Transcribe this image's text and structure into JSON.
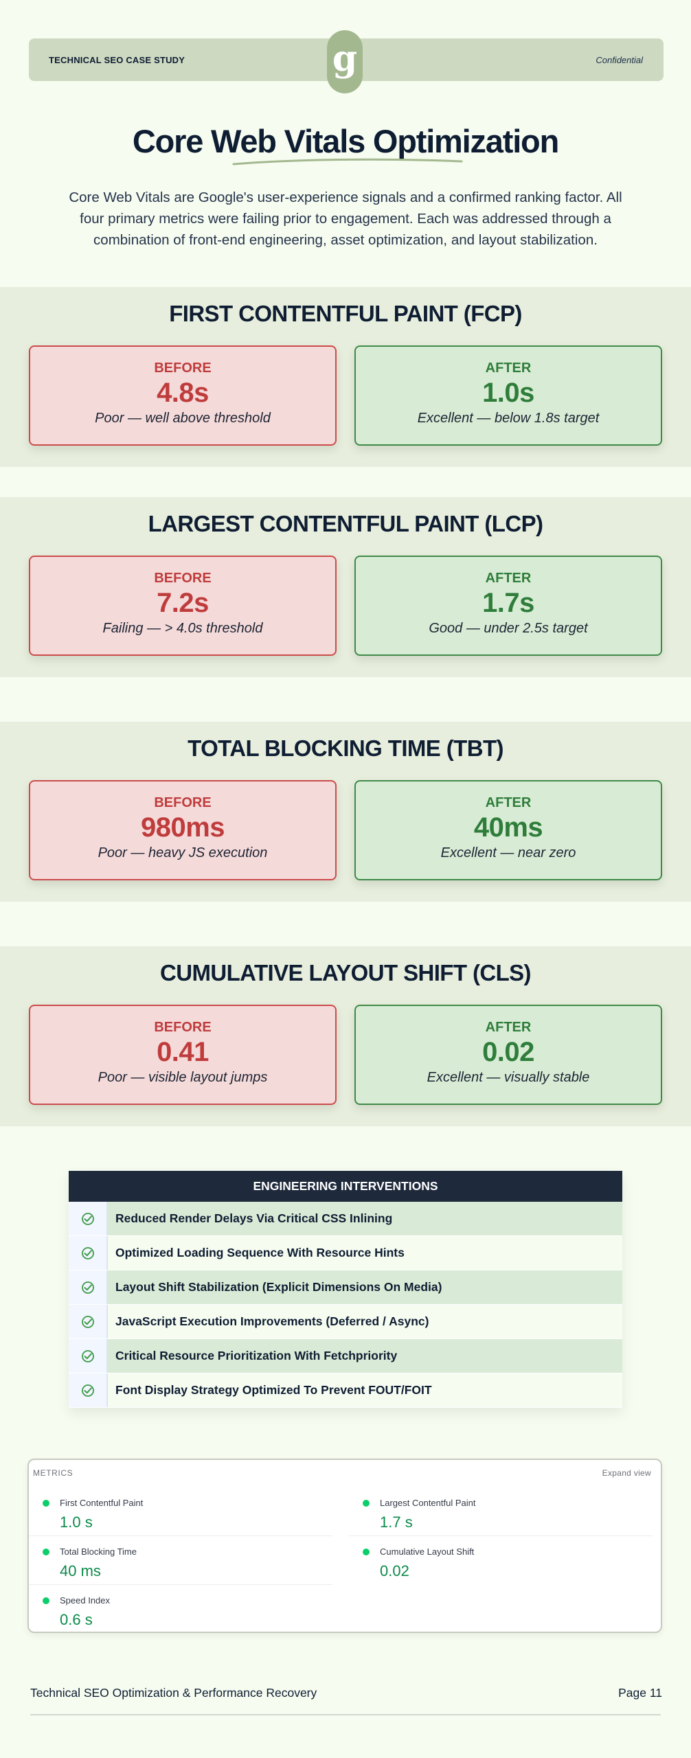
{
  "header": {
    "left_label": "TECHNICAL SEO CASE STUDY",
    "right_label": "Confidential",
    "logo_glyph": "g"
  },
  "title": "Core Web Vitals Optimization",
  "intro": "Core Web Vitals are Google's user-experience signals and a confirmed ranking factor. All four primary metrics were failing prior to engagement. Each was addressed through a combination of front-end engineering, asset optimization, and layout stabilization.",
  "metrics": [
    {
      "heading": "FIRST CONTENTFUL PAINT (FCP)",
      "before": {
        "label": "BEFORE",
        "value": "4.8s",
        "note": "Poor — well above threshold"
      },
      "after": {
        "label": "AFTER",
        "value": "1.0s",
        "note": "Excellent — below 1.8s target"
      }
    },
    {
      "heading": "LARGEST CONTENTFUL PAINT (LCP)",
      "before": {
        "label": "BEFORE",
        "value": "7.2s",
        "note": "Failing — > 4.0s threshold"
      },
      "after": {
        "label": "AFTER",
        "value": "1.7s",
        "note": "Good — under 2.5s target"
      }
    },
    {
      "heading": "TOTAL BLOCKING TIME (TBT)",
      "before": {
        "label": "BEFORE",
        "value": "980ms",
        "note": "Poor — heavy JS execution"
      },
      "after": {
        "label": "AFTER",
        "value": "40ms",
        "note": "Excellent — near zero"
      }
    },
    {
      "heading": "CUMULATIVE LAYOUT SHIFT (CLS)",
      "before": {
        "label": "BEFORE",
        "value": "0.41",
        "note": "Poor — visible layout jumps"
      },
      "after": {
        "label": "AFTER",
        "value": "0.02",
        "note": "Excellent — visually stable"
      }
    }
  ],
  "interventions": {
    "title": "ENGINEERING INTERVENTIONS",
    "items": [
      "Reduced Render Delays Via Critical CSS Inlining",
      "Optimized Loading Sequence With Resource Hints",
      "Layout Shift Stabilization (Explicit Dimensions On Media)",
      "JavaScript Execution Improvements (Deferred / Async)",
      "Critical Resource Prioritization With Fetchpriority",
      "Font Display Strategy Optimized To Prevent FOUT/FOIT"
    ]
  },
  "metrics_panel": {
    "title": "METRICS",
    "expand_label": "Expand view",
    "status_color": "#0cce6b",
    "items": [
      {
        "name": "First Contentful Paint",
        "value": "1.0 s"
      },
      {
        "name": "Largest Contentful Paint",
        "value": "1.7 s"
      },
      {
        "name": "Total Blocking Time",
        "value": "40 ms"
      },
      {
        "name": "Cumulative Layout Shift",
        "value": "0.02"
      },
      {
        "name": "Speed Index",
        "value": "0.6 s"
      }
    ]
  },
  "footer": {
    "left": "Technical SEO Optimization & Performance Recovery",
    "right": "Page 11"
  },
  "colors": {
    "background": "#f6fcf0",
    "before_accent": "#bf3c3c",
    "after_accent": "#2f7d3b",
    "navy": "#0f1d33"
  }
}
